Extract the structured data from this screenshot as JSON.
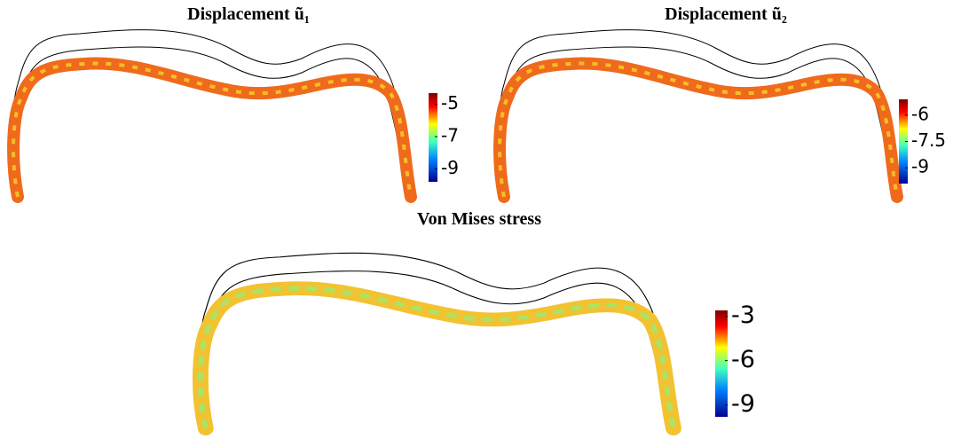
{
  "panels": [
    {
      "title": "Displacement ũ₁",
      "colorbar": {
        "lim": [
          -9.8,
          -4.3
        ],
        "ticks": [
          -5,
          -7,
          -9
        ]
      }
    },
    {
      "title": "Displacement ũ₂",
      "colorbar": {
        "lim": [
          -9.9,
          -5.1
        ],
        "ticks": [
          -6,
          -7.5,
          -9
        ]
      }
    },
    {
      "title": "Von Mises stress",
      "colorbar": {
        "lim": [
          -9.8,
          -2.6
        ],
        "ticks": [
          -3,
          -6,
          -9
        ]
      }
    }
  ]
}
